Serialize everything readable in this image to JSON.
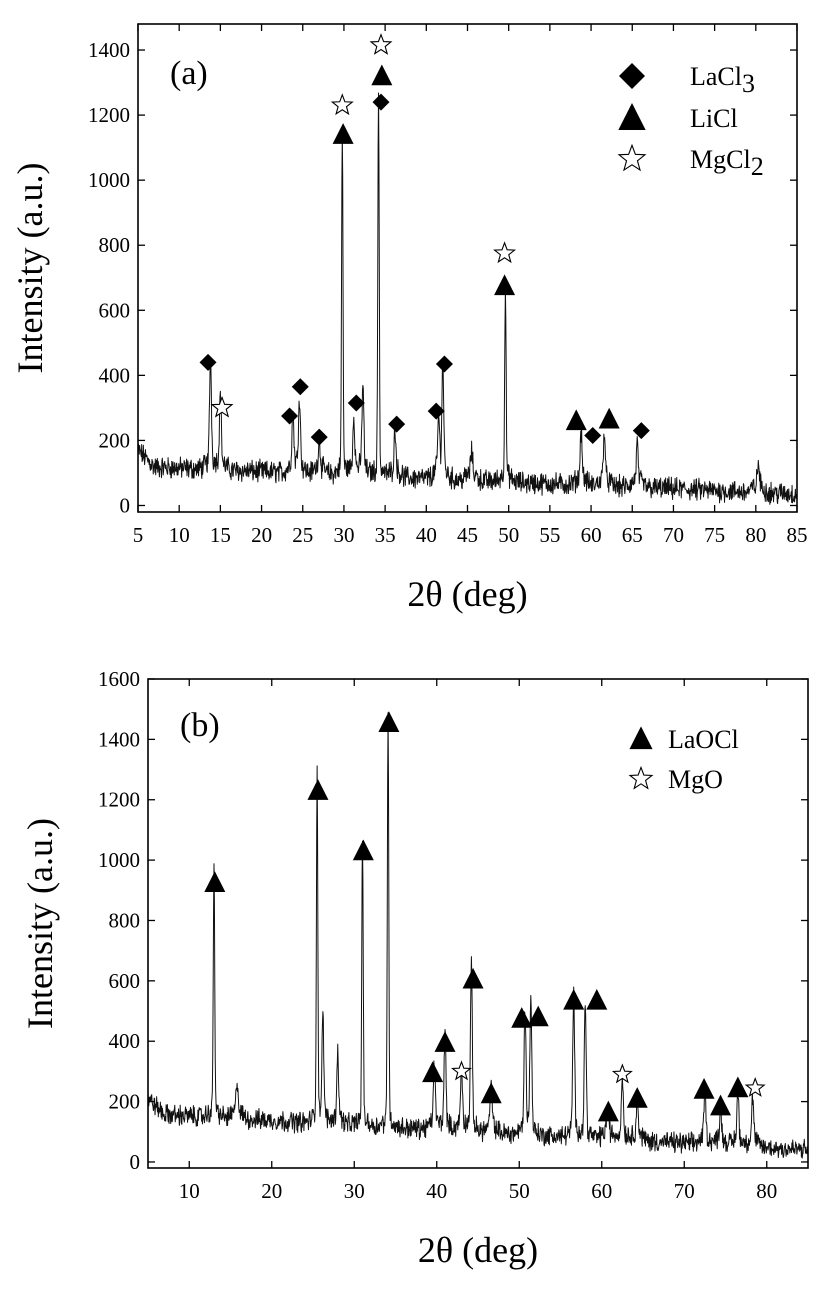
{
  "chart_data": [
    {
      "type": "line",
      "panel_label": "(a)",
      "xlabel": "2θ (deg)",
      "ylabel": "Intensity (a.u.)",
      "xlim": [
        5,
        85
      ],
      "ylim": [
        -20,
        1480
      ],
      "xticks": [
        5,
        10,
        15,
        20,
        25,
        30,
        35,
        40,
        45,
        50,
        55,
        60,
        65,
        70,
        75,
        80,
        85
      ],
      "yticks": [
        0,
        200,
        400,
        600,
        800,
        1000,
        1200,
        1400
      ],
      "baseline": {
        "from": [
          5,
          120
        ],
        "to": [
          85,
          35
        ]
      },
      "peaks": [
        {
          "x": 13.8,
          "y": 360
        },
        {
          "x": 15.0,
          "y": 250
        },
        {
          "x": 23.8,
          "y": 200
        },
        {
          "x": 24.6,
          "y": 250
        },
        {
          "x": 27.0,
          "y": 130
        },
        {
          "x": 29.8,
          "y": 1080
        },
        {
          "x": 31.2,
          "y": 200
        },
        {
          "x": 32.3,
          "y": 300
        },
        {
          "x": 34.2,
          "y": 1190
        },
        {
          "x": 36.2,
          "y": 170
        },
        {
          "x": 41.5,
          "y": 200
        },
        {
          "x": 42.0,
          "y": 360
        },
        {
          "x": 45.5,
          "y": 110
        },
        {
          "x": 49.6,
          "y": 620
        },
        {
          "x": 58.8,
          "y": 190
        },
        {
          "x": 61.6,
          "y": 190
        },
        {
          "x": 65.6,
          "y": 150
        },
        {
          "x": 80.3,
          "y": 110
        }
      ],
      "markers": [
        {
          "phase": "LaCl3",
          "x": 13.5,
          "y": 440
        },
        {
          "phase": "MgCl2",
          "x": 15.2,
          "y": 300
        },
        {
          "phase": "LaCl3",
          "x": 23.4,
          "y": 275
        },
        {
          "phase": "LaCl3",
          "x": 24.7,
          "y": 365
        },
        {
          "phase": "LaCl3",
          "x": 27.0,
          "y": 210
        },
        {
          "phase": "LiCl",
          "x": 29.9,
          "y": 1140
        },
        {
          "phase": "MgCl2",
          "x": 29.8,
          "y": 1230
        },
        {
          "phase": "LaCl3",
          "x": 31.5,
          "y": 315
        },
        {
          "phase": "LaCl3",
          "x": 34.5,
          "y": 1240
        },
        {
          "phase": "LiCl",
          "x": 34.6,
          "y": 1320
        },
        {
          "phase": "MgCl2",
          "x": 34.5,
          "y": 1415
        },
        {
          "phase": "LaCl3",
          "x": 36.4,
          "y": 250
        },
        {
          "phase": "LaCl3",
          "x": 41.2,
          "y": 290
        },
        {
          "phase": "LaCl3",
          "x": 42.2,
          "y": 435
        },
        {
          "phase": "LiCl",
          "x": 49.5,
          "y": 675
        },
        {
          "phase": "MgCl2",
          "x": 49.5,
          "y": 775
        },
        {
          "phase": "LiCl",
          "x": 58.2,
          "y": 260
        },
        {
          "phase": "LaCl3",
          "x": 60.2,
          "y": 215
        },
        {
          "phase": "LiCl",
          "x": 62.2,
          "y": 265
        },
        {
          "phase": "LaCl3",
          "x": 66.1,
          "y": 230
        }
      ],
      "legend": [
        {
          "marker": "diamond",
          "label": "LaCl",
          "sub": "3"
        },
        {
          "marker": "triangle",
          "label": "LiCl",
          "sub": ""
        },
        {
          "marker": "star",
          "label": "MgCl",
          "sub": "2"
        }
      ]
    },
    {
      "type": "line",
      "panel_label": "(b)",
      "xlabel": "2θ (deg)",
      "ylabel": "Intensity (a.u.)",
      "xlim": [
        5,
        85
      ],
      "ylim": [
        -20,
        1600
      ],
      "xticks": [
        10,
        20,
        30,
        40,
        50,
        60,
        70,
        80
      ],
      "yticks": [
        0,
        200,
        400,
        600,
        800,
        1000,
        1200,
        1400,
        1600
      ],
      "baseline": {
        "from": [
          5,
          160
        ],
        "to": [
          85,
          40
        ]
      },
      "peaks": [
        {
          "x": 13.0,
          "y": 870
        },
        {
          "x": 15.8,
          "y": 150
        },
        {
          "x": 25.5,
          "y": 1170
        },
        {
          "x": 26.2,
          "y": 360
        },
        {
          "x": 28.0,
          "y": 260
        },
        {
          "x": 31.0,
          "y": 990
        },
        {
          "x": 34.1,
          "y": 1400
        },
        {
          "x": 39.7,
          "y": 240
        },
        {
          "x": 41.0,
          "y": 340
        },
        {
          "x": 43.0,
          "y": 230
        },
        {
          "x": 44.2,
          "y": 560
        },
        {
          "x": 46.6,
          "y": 180
        },
        {
          "x": 50.7,
          "y": 430
        },
        {
          "x": 51.4,
          "y": 460
        },
        {
          "x": 56.6,
          "y": 490
        },
        {
          "x": 58.0,
          "y": 470
        },
        {
          "x": 60.7,
          "y": 140
        },
        {
          "x": 62.5,
          "y": 230
        },
        {
          "x": 64.3,
          "y": 160
        },
        {
          "x": 72.5,
          "y": 200
        },
        {
          "x": 74.4,
          "y": 160
        },
        {
          "x": 76.5,
          "y": 200
        },
        {
          "x": 78.3,
          "y": 190
        }
      ],
      "markers": [
        {
          "phase": "LaOCl",
          "x": 13.1,
          "y": 925
        },
        {
          "phase": "LaOCl",
          "x": 25.6,
          "y": 1230
        },
        {
          "phase": "LaOCl",
          "x": 31.1,
          "y": 1030
        },
        {
          "phase": "LaOCl",
          "x": 34.2,
          "y": 1455
        },
        {
          "phase": "LaOCl",
          "x": 39.5,
          "y": 295
        },
        {
          "phase": "LaOCl",
          "x": 41.0,
          "y": 395
        },
        {
          "phase": "MgO",
          "x": 43.0,
          "y": 300
        },
        {
          "phase": "LaOCl",
          "x": 44.4,
          "y": 605
        },
        {
          "phase": "LaOCl",
          "x": 46.6,
          "y": 225
        },
        {
          "phase": "LaOCl",
          "x": 50.3,
          "y": 475
        },
        {
          "phase": "LaOCl",
          "x": 52.3,
          "y": 480
        },
        {
          "phase": "LaOCl",
          "x": 56.6,
          "y": 535
        },
        {
          "phase": "LaOCl",
          "x": 59.4,
          "y": 535
        },
        {
          "phase": "LaOCl",
          "x": 60.8,
          "y": 165
        },
        {
          "phase": "MgO",
          "x": 62.5,
          "y": 290
        },
        {
          "phase": "LaOCl",
          "x": 64.3,
          "y": 210
        },
        {
          "phase": "LaOCl",
          "x": 72.4,
          "y": 240
        },
        {
          "phase": "LaOCl",
          "x": 74.4,
          "y": 185
        },
        {
          "phase": "LaOCl",
          "x": 76.5,
          "y": 245
        },
        {
          "phase": "MgO",
          "x": 78.6,
          "y": 245
        }
      ],
      "legend": [
        {
          "marker": "triangle",
          "label": "LaOCl",
          "sub": ""
        },
        {
          "marker": "star-small",
          "label": "MgO",
          "sub": ""
        }
      ]
    }
  ]
}
